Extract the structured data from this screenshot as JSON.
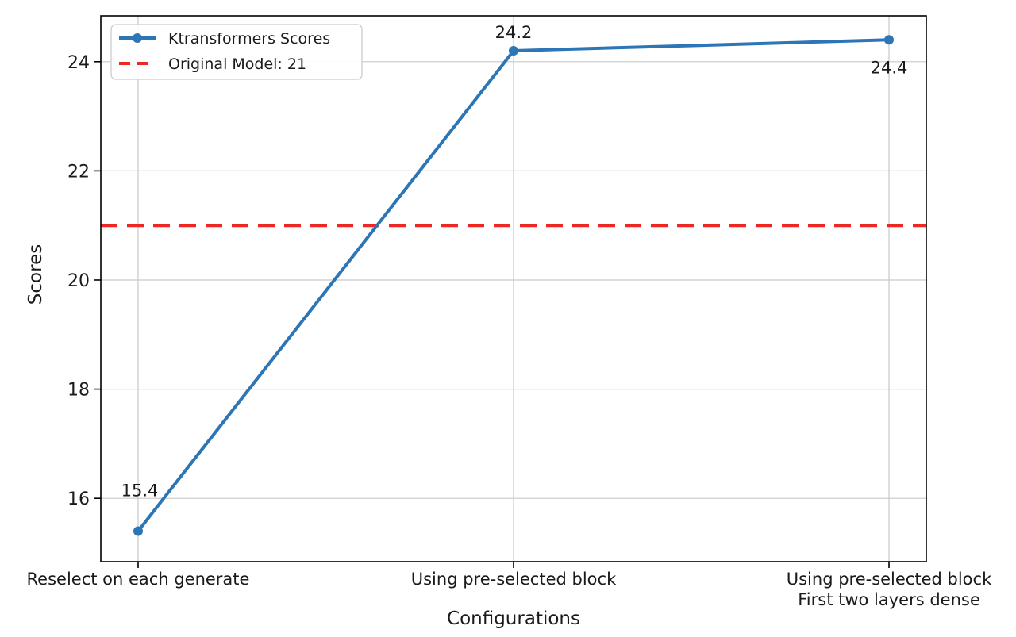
{
  "chart_data": {
    "type": "line",
    "title": "",
    "xlabel": "Configurations",
    "ylabel": "Scores",
    "categories": [
      "Reselect on each generate",
      "Using pre-selected block",
      "Using pre-selected block\nFirst two layers dense"
    ],
    "series": [
      {
        "name": "Ktransformers Scores",
        "values": [
          15.4,
          24.2,
          24.4
        ],
        "color": "#2d76b5",
        "marker": "circle",
        "line_style": "solid"
      }
    ],
    "data_labels": [
      "15.4",
      "24.2",
      "24.4"
    ],
    "reference_line": {
      "label": "Original Model: 21",
      "value": 21,
      "color": "#ee2722",
      "line_style": "dashed"
    },
    "legend": {
      "position": "upper left",
      "entries": [
        "Ktransformers Scores",
        "Original Model: 21"
      ]
    },
    "yticks": [
      16,
      18,
      20,
      22,
      24
    ],
    "ylim": [
      14.84,
      24.84
    ],
    "grid": true,
    "colors": {
      "grid": "#c9c9c9",
      "spine": "#000000",
      "text": "#1a1a1a",
      "background": "#ffffff",
      "legend_border": "#cccccc"
    }
  }
}
